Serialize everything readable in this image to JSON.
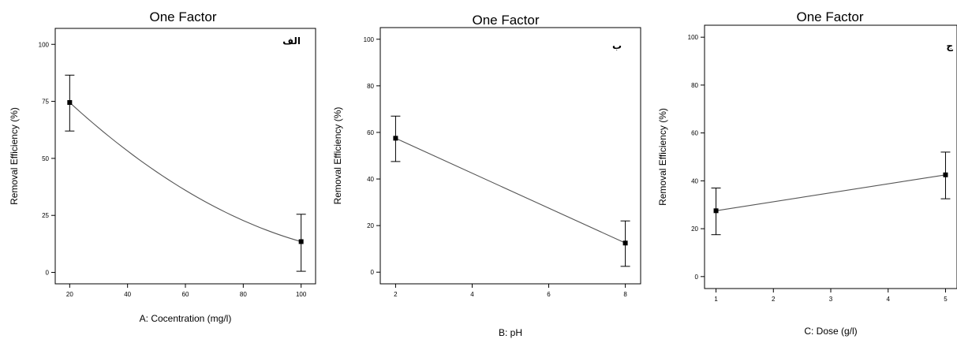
{
  "chart_data": [
    {
      "type": "line",
      "title": "One Factor",
      "panel_label": "الف",
      "xlabel": "A: Cocentration (mg/l)",
      "ylabel": "Removal Efficiency (%)",
      "xlim": [
        15,
        105
      ],
      "ylim": [
        -5,
        107
      ],
      "xticks": [
        20,
        40,
        60,
        80,
        100
      ],
      "yticks": [
        0,
        25,
        50,
        75,
        100
      ],
      "curve": "quadratic",
      "points": [
        {
          "x": 20,
          "y": 74.5,
          "low": 62,
          "high": 86.5
        },
        {
          "x": 100,
          "y": 13.5,
          "low": 0.5,
          "high": 25.5
        }
      ],
      "curve_mid": {
        "x": 60,
        "y": 36
      }
    },
    {
      "type": "line",
      "title": "One Factor",
      "panel_label": "ب",
      "xlabel": "B: pH",
      "ylabel": "Removal Efficiency (%)",
      "xlim": [
        1.6,
        8.4
      ],
      "ylim": [
        -5,
        105
      ],
      "xticks": [
        2,
        4,
        6,
        8
      ],
      "yticks": [
        0,
        20,
        40,
        60,
        80,
        100
      ],
      "curve": "linear",
      "points": [
        {
          "x": 2,
          "y": 57.5,
          "low": 47.5,
          "high": 67
        },
        {
          "x": 8,
          "y": 12.5,
          "low": 2.5,
          "high": 22
        }
      ]
    },
    {
      "type": "line",
      "title": "One Factor",
      "panel_label": "ج",
      "xlabel": "C: Dose (g/l)",
      "ylabel": "Removal Efficiency (%)",
      "xlim": [
        0.8,
        5.2
      ],
      "ylim": [
        -5,
        105
      ],
      "xticks": [
        1,
        2,
        3,
        4,
        5
      ],
      "yticks": [
        0,
        20,
        40,
        60,
        80,
        100
      ],
      "curve": "linear",
      "points": [
        {
          "x": 1,
          "y": 27.5,
          "low": 17.5,
          "high": 37
        },
        {
          "x": 5,
          "y": 42.5,
          "low": 32.5,
          "high": 52
        }
      ]
    }
  ]
}
